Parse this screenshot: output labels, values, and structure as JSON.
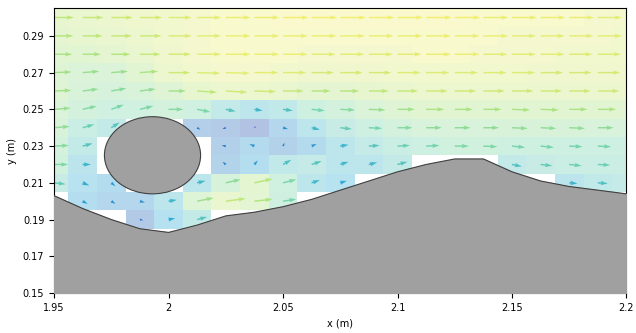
{
  "chart_data": {
    "type": "quiver",
    "xlabel": "x (m)",
    "ylabel": "y (m)",
    "xlim": [
      1.95,
      2.2
    ],
    "ylim": [
      0.15,
      0.305
    ],
    "xticks": [
      1.95,
      2,
      2.05,
      2.1,
      2.15,
      2.2
    ],
    "yticks": [
      0.15,
      0.17,
      0.19,
      0.21,
      0.23,
      0.25,
      0.27,
      0.29
    ],
    "x": [
      1.95,
      1.9625,
      1.975,
      1.9875,
      2.0,
      2.0125,
      2.025,
      2.0375,
      2.05,
      2.0625,
      2.075,
      2.0875,
      2.1,
      2.1125,
      2.125,
      2.1375,
      2.15,
      2.1625,
      2.175,
      2.1875,
      2.2
    ],
    "y": [
      0.19,
      0.2,
      0.21,
      0.22,
      0.23,
      0.24,
      0.25,
      0.26,
      0.27,
      0.28,
      0.29,
      0.3
    ],
    "u": [
      [
        null,
        null,
        null,
        0.04,
        0.08,
        0.12,
        null,
        null,
        null,
        null,
        null,
        null,
        null,
        null,
        null,
        null,
        null,
        null,
        null,
        null,
        null
      ],
      [
        null,
        0.06,
        0.05,
        0.06,
        0.1,
        0.2,
        0.24,
        0.22,
        0.16,
        null,
        null,
        null,
        null,
        null,
        null,
        null,
        null,
        null,
        null,
        null,
        null
      ],
      [
        0.14,
        0.08,
        0.05,
        null,
        null,
        0.1,
        0.18,
        0.22,
        0.16,
        0.1,
        0.08,
        null,
        null,
        null,
        null,
        null,
        null,
        null,
        0.1,
        0.12,
        0.13
      ],
      [
        0.17,
        0.1,
        null,
        null,
        null,
        null,
        -0.04,
        0.04,
        0.1,
        0.12,
        0.1,
        0.1,
        0.12,
        null,
        null,
        null,
        0.12,
        0.14,
        0.15,
        0.15,
        0.15
      ],
      [
        0.18,
        0.12,
        null,
        null,
        null,
        null,
        -0.05,
        -0.06,
        0.02,
        0.06,
        0.1,
        0.13,
        0.15,
        0.16,
        0.17,
        0.17,
        0.16,
        0.16,
        0.16,
        0.16,
        0.16
      ],
      [
        0.19,
        0.14,
        0.1,
        null,
        null,
        0.04,
        -0.04,
        0.02,
        0.06,
        0.1,
        0.14,
        0.16,
        0.18,
        0.19,
        0.19,
        0.19,
        0.19,
        0.19,
        0.19,
        0.19,
        0.19
      ],
      [
        0.2,
        0.17,
        0.15,
        0.16,
        0.18,
        0.16,
        0.12,
        0.1,
        0.12,
        0.16,
        0.18,
        0.2,
        0.21,
        0.22,
        0.22,
        0.22,
        0.22,
        0.22,
        0.22,
        0.22,
        0.22
      ],
      [
        0.21,
        0.19,
        0.18,
        0.19,
        0.21,
        0.24,
        0.26,
        0.26,
        0.25,
        0.23,
        0.23,
        0.24,
        0.25,
        0.26,
        0.26,
        0.26,
        0.26,
        0.26,
        0.26,
        0.26,
        0.26
      ],
      [
        0.21,
        0.2,
        0.2,
        0.22,
        0.26,
        0.28,
        0.29,
        0.29,
        0.28,
        0.27,
        0.27,
        0.27,
        0.28,
        0.28,
        0.28,
        0.28,
        0.28,
        0.27,
        0.27,
        0.27,
        0.27
      ],
      [
        0.22,
        0.22,
        0.23,
        0.25,
        0.27,
        0.29,
        0.3,
        0.3,
        0.3,
        0.29,
        0.29,
        0.29,
        0.29,
        0.3,
        0.3,
        0.29,
        0.29,
        0.29,
        0.28,
        0.28,
        0.28
      ],
      [
        0.23,
        0.24,
        0.25,
        0.26,
        0.28,
        0.29,
        0.3,
        0.3,
        0.3,
        0.3,
        0.3,
        0.3,
        0.3,
        0.3,
        0.3,
        0.3,
        0.29,
        0.29,
        0.29,
        0.29,
        0.28
      ],
      [
        0.24,
        0.25,
        0.26,
        0.27,
        0.28,
        0.29,
        0.3,
        0.3,
        0.31,
        0.31,
        0.31,
        0.31,
        0.31,
        0.31,
        0.31,
        0.3,
        0.3,
        0.3,
        0.3,
        0.29,
        0.29
      ]
    ],
    "v": [
      [
        null,
        null,
        null,
        -0.01,
        0.02,
        0.04,
        null,
        null,
        null,
        null,
        null,
        null,
        null,
        null,
        null,
        null,
        null,
        null,
        null,
        null,
        null
      ],
      [
        null,
        -0.04,
        -0.04,
        -0.02,
        0.02,
        0.05,
        0.04,
        0.03,
        0.03,
        null,
        null,
        null,
        null,
        null,
        null,
        null,
        null,
        null,
        null,
        null,
        null
      ],
      [
        -0.02,
        -0.04,
        -0.05,
        null,
        null,
        0.03,
        0.05,
        0.06,
        0.05,
        0.04,
        0.03,
        null,
        null,
        null,
        null,
        null,
        null,
        null,
        -0.01,
        -0.01,
        0.0
      ],
      [
        0.0,
        0.0,
        null,
        null,
        null,
        null,
        0.04,
        0.06,
        0.07,
        0.05,
        0.04,
        0.03,
        0.04,
        null,
        null,
        null,
        -0.03,
        -0.02,
        -0.02,
        -0.01,
        -0.01
      ],
      [
        0.01,
        0.04,
        null,
        null,
        null,
        null,
        0.01,
        0.03,
        0.05,
        0.03,
        0.02,
        0.01,
        0.01,
        0.01,
        0.0,
        -0.01,
        -0.02,
        -0.02,
        -0.01,
        -0.01,
        0.0
      ],
      [
        0.02,
        0.05,
        0.08,
        null,
        null,
        -0.03,
        -0.02,
        0.02,
        -0.02,
        -0.03,
        -0.02,
        -0.01,
        0.0,
        0.0,
        0.0,
        0.0,
        -0.01,
        -0.01,
        -0.01,
        0.0,
        0.0
      ],
      [
        0.02,
        0.05,
        0.07,
        0.05,
        0.0,
        -0.04,
        -0.03,
        -0.02,
        -0.02,
        -0.02,
        -0.01,
        -0.01,
        0.0,
        0.0,
        0.0,
        0.0,
        -0.01,
        -0.01,
        0.0,
        0.0,
        0.0
      ],
      [
        0.01,
        0.03,
        0.04,
        0.03,
        0.0,
        -0.02,
        -0.02,
        -0.01,
        0.0,
        0.0,
        0.0,
        0.0,
        0.0,
        0.0,
        0.0,
        0.0,
        0.0,
        0.0,
        0.0,
        0.0,
        0.0
      ],
      [
        0.01,
        0.02,
        0.02,
        0.02,
        0.0,
        -0.01,
        -0.01,
        0.0,
        0.0,
        0.0,
        0.0,
        0.0,
        0.0,
        0.0,
        0.0,
        0.0,
        0.0,
        0.0,
        0.0,
        0.0,
        0.0
      ],
      [
        0.0,
        0.0,
        0.0,
        0.0,
        0.0,
        0.0,
        0.0,
        0.0,
        0.0,
        0.0,
        0.0,
        0.0,
        0.0,
        0.0,
        0.0,
        0.0,
        0.0,
        0.0,
        0.0,
        0.0,
        0.0
      ],
      [
        0.0,
        0.0,
        0.0,
        0.0,
        0.0,
        0.0,
        0.0,
        0.0,
        0.0,
        0.0,
        0.0,
        0.0,
        0.0,
        0.0,
        0.0,
        0.0,
        0.0,
        0.0,
        0.0,
        0.0,
        0.0
      ],
      [
        0.0,
        0.0,
        0.0,
        0.0,
        0.0,
        0.0,
        0.0,
        0.0,
        0.0,
        0.0,
        0.0,
        0.0,
        0.0,
        0.0,
        0.0,
        0.0,
        0.0,
        0.0,
        0.0,
        0.0,
        0.0
      ]
    ],
    "bed_y": [
      0.203,
      0.196,
      0.19,
      0.185,
      0.183,
      0.187,
      0.192,
      0.194,
      0.197,
      0.201,
      0.206,
      0.211,
      0.216,
      0.22,
      0.223,
      0.223,
      0.216,
      0.211,
      0.208,
      0.206,
      0.204
    ],
    "cylinder": {
      "center": [
        1.993,
        0.225
      ],
      "radius": 0.021
    }
  }
}
